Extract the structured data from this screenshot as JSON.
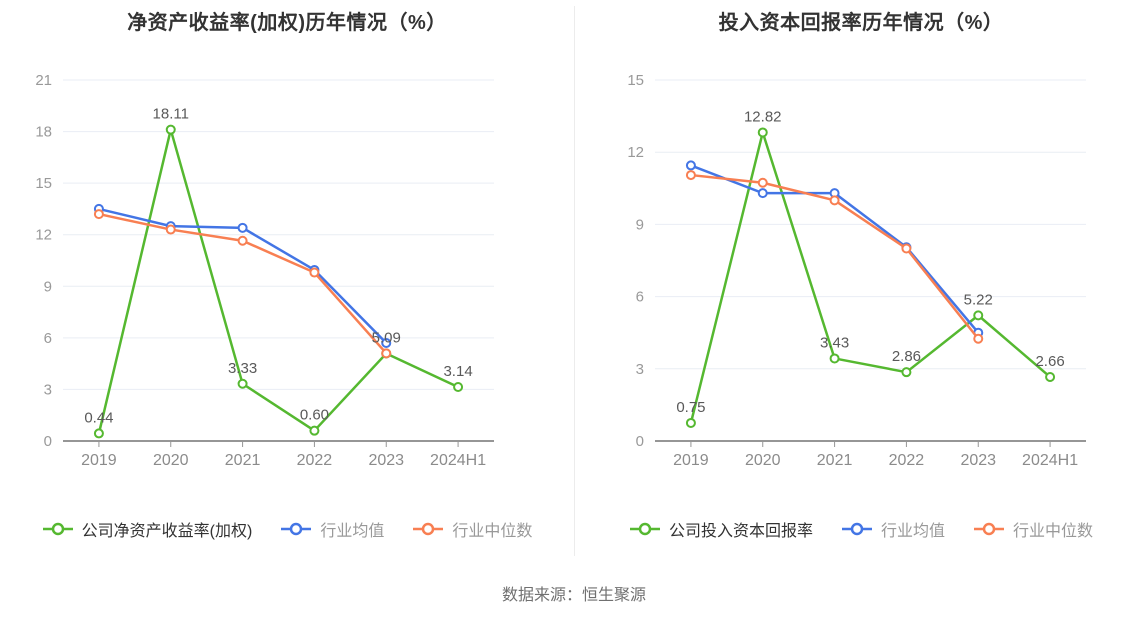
{
  "page": {
    "footer": "数据来源：恒生聚源",
    "background": "#ffffff"
  },
  "colors": {
    "company_green": "#55b830",
    "industry_avg_blue": "#4375e5",
    "industry_median_orange": "#f87f52",
    "grid": "#e9edf4",
    "axis_line": "#969696",
    "axis_label": "#999999",
    "x_label": "#8b8b8b",
    "value_label": "#595959",
    "title_text": "#333333",
    "legend_muted": "#999999",
    "footer_text": "#707070"
  },
  "chart_data": [
    {
      "type": "line",
      "title": "净资产收益率(加权)历年情况（%）",
      "categories": [
        "2019",
        "2020",
        "2021",
        "2022",
        "2023",
        "2024H1"
      ],
      "ylim": [
        0,
        21
      ],
      "ytick_step": 3,
      "grid": true,
      "legend_position": "bottom",
      "series": [
        {
          "name": "公司净资产收益率(加权)",
          "color": "#55b830",
          "values": [
            0.44,
            18.11,
            3.33,
            0.6,
            5.09,
            3.14
          ],
          "labels": [
            "0.44",
            "18.11",
            "3.33",
            "0.60",
            "5.09",
            "3.14"
          ],
          "marker": "circle"
        },
        {
          "name": "行业均值",
          "color": "#4375e5",
          "values": [
            13.5,
            12.5,
            12.4,
            9.95,
            5.7,
            null
          ],
          "marker": "circle"
        },
        {
          "name": "行业中位数",
          "color": "#f87f52",
          "values": [
            13.2,
            12.3,
            11.65,
            9.8,
            5.1,
            null
          ],
          "marker": "circle"
        }
      ]
    },
    {
      "type": "line",
      "title": "投入资本回报率历年情况（%）",
      "categories": [
        "2019",
        "2020",
        "2021",
        "2022",
        "2023",
        "2024H1"
      ],
      "ylim": [
        0,
        15
      ],
      "ytick_step": 3,
      "grid": true,
      "legend_position": "bottom",
      "series": [
        {
          "name": "公司投入资本回报率",
          "color": "#55b830",
          "values": [
            0.75,
            12.82,
            3.43,
            2.86,
            5.22,
            2.66
          ],
          "labels": [
            "0.75",
            "12.82",
            "3.43",
            "2.86",
            "5.22",
            "2.66"
          ],
          "marker": "circle"
        },
        {
          "name": "行业均值",
          "color": "#4375e5",
          "values": [
            11.45,
            10.3,
            10.3,
            8.05,
            4.5,
            null
          ],
          "marker": "circle"
        },
        {
          "name": "行业中位数",
          "color": "#f87f52",
          "values": [
            11.05,
            10.73,
            10.0,
            8.0,
            4.25,
            null
          ],
          "marker": "circle"
        }
      ]
    }
  ]
}
